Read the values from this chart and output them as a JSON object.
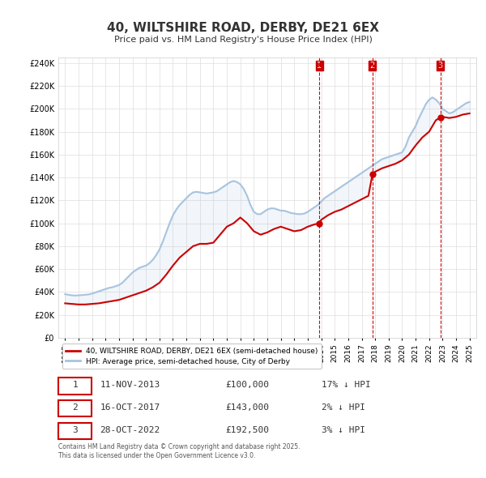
{
  "title": "40, WILTSHIRE ROAD, DERBY, DE21 6EX",
  "subtitle": "Price paid vs. HM Land Registry's House Price Index (HPI)",
  "ylabel_ticks": [
    "£0",
    "£20K",
    "£40K",
    "£60K",
    "£80K",
    "£100K",
    "£120K",
    "£140K",
    "£160K",
    "£180K",
    "£200K",
    "£220K",
    "£240K"
  ],
  "ytick_vals": [
    0,
    20000,
    40000,
    60000,
    80000,
    100000,
    120000,
    140000,
    160000,
    180000,
    200000,
    220000,
    240000
  ],
  "ylim": [
    0,
    245000
  ],
  "hpi_color": "#a8c4e0",
  "price_color": "#cc0000",
  "sale_marker_color": "#cc0000",
  "vline_color": "#cc0000",
  "vline_style": "--",
  "legend_box_color": "#f0f0f0",
  "legend_label_price": "40, WILTSHIRE ROAD, DERBY, DE21 6EX (semi-detached house)",
  "legend_label_hpi": "HPI: Average price, semi-detached house, City of Derby",
  "transactions": [
    {
      "num": 1,
      "date": "11-NOV-2013",
      "price": 100000,
      "hpi_diff": "17% ↓ HPI",
      "x": 2013.87
    },
    {
      "num": 2,
      "date": "16-OCT-2017",
      "price": 143000,
      "hpi_diff": "2% ↓ HPI",
      "x": 2017.8
    },
    {
      "num": 3,
      "date": "28-OCT-2022",
      "price": 192500,
      "hpi_diff": "3% ↓ HPI",
      "x": 2022.83
    }
  ],
  "footnote": "Contains HM Land Registry data © Crown copyright and database right 2025.\nThis data is licensed under the Open Government Licence v3.0.",
  "hpi_data_x": [
    1995.0,
    1995.25,
    1995.5,
    1995.75,
    1996.0,
    1996.25,
    1996.5,
    1996.75,
    1997.0,
    1997.25,
    1997.5,
    1997.75,
    1998.0,
    1998.25,
    1998.5,
    1998.75,
    1999.0,
    1999.25,
    1999.5,
    1999.75,
    2000.0,
    2000.25,
    2000.5,
    2000.75,
    2001.0,
    2001.25,
    2001.5,
    2001.75,
    2002.0,
    2002.25,
    2002.5,
    2002.75,
    2003.0,
    2003.25,
    2003.5,
    2003.75,
    2004.0,
    2004.25,
    2004.5,
    2004.75,
    2005.0,
    2005.25,
    2005.5,
    2005.75,
    2006.0,
    2006.25,
    2006.5,
    2006.75,
    2007.0,
    2007.25,
    2007.5,
    2007.75,
    2008.0,
    2008.25,
    2008.5,
    2008.75,
    2009.0,
    2009.25,
    2009.5,
    2009.75,
    2010.0,
    2010.25,
    2010.5,
    2010.75,
    2011.0,
    2011.25,
    2011.5,
    2011.75,
    2012.0,
    2012.25,
    2012.5,
    2012.75,
    2013.0,
    2013.25,
    2013.5,
    2013.75,
    2014.0,
    2014.25,
    2014.5,
    2014.75,
    2015.0,
    2015.25,
    2015.5,
    2015.75,
    2016.0,
    2016.25,
    2016.5,
    2016.75,
    2017.0,
    2017.25,
    2017.5,
    2017.75,
    2018.0,
    2018.25,
    2018.5,
    2018.75,
    2019.0,
    2019.25,
    2019.5,
    2019.75,
    2020.0,
    2020.25,
    2020.5,
    2020.75,
    2021.0,
    2021.25,
    2021.5,
    2021.75,
    2022.0,
    2022.25,
    2022.5,
    2022.75,
    2023.0,
    2023.25,
    2023.5,
    2023.75,
    2024.0,
    2024.25,
    2024.5,
    2024.75,
    2025.0
  ],
  "hpi_data_y": [
    38000,
    37500,
    37000,
    36800,
    37000,
    37200,
    37500,
    37800,
    38500,
    39500,
    40500,
    41500,
    42500,
    43500,
    44000,
    45000,
    46000,
    48000,
    51000,
    54000,
    57000,
    59000,
    61000,
    62000,
    63000,
    65000,
    68000,
    72000,
    77000,
    84000,
    92000,
    100000,
    107000,
    112000,
    116000,
    119000,
    122000,
    125000,
    127000,
    127500,
    127000,
    126500,
    126000,
    126500,
    127000,
    128000,
    130000,
    132000,
    134000,
    136000,
    137000,
    136000,
    134000,
    130000,
    124000,
    116000,
    110000,
    108000,
    108000,
    110000,
    112000,
    113000,
    113000,
    112000,
    111000,
    111000,
    110000,
    109000,
    108500,
    108000,
    108000,
    108500,
    110000,
    112000,
    114000,
    116000,
    119000,
    122000,
    124000,
    126000,
    128000,
    130000,
    132000,
    134000,
    136000,
    138000,
    140000,
    142000,
    144000,
    146000,
    148000,
    150000,
    152000,
    154000,
    156000,
    157000,
    158000,
    159000,
    160000,
    161000,
    162000,
    167000,
    175000,
    180000,
    185000,
    192000,
    198000,
    204000,
    208000,
    210000,
    208000,
    205000,
    200000,
    198000,
    196000,
    197000,
    199000,
    201000,
    203000,
    205000,
    206000
  ],
  "price_data_x": [
    1995.0,
    1995.5,
    1996.0,
    1996.5,
    1997.0,
    1997.5,
    1998.0,
    1998.5,
    1999.0,
    1999.5,
    2000.0,
    2000.5,
    2001.0,
    2001.5,
    2002.0,
    2002.5,
    2003.0,
    2003.5,
    2004.0,
    2004.5,
    2005.0,
    2005.5,
    2006.0,
    2006.5,
    2007.0,
    2007.5,
    2008.0,
    2008.5,
    2009.0,
    2009.5,
    2010.0,
    2010.5,
    2011.0,
    2011.5,
    2012.0,
    2012.5,
    2013.0,
    2013.5,
    2013.87,
    2014.0,
    2014.5,
    2015.0,
    2015.5,
    2016.0,
    2016.5,
    2017.0,
    2017.5,
    2017.8,
    2018.0,
    2018.5,
    2019.0,
    2019.5,
    2020.0,
    2020.5,
    2021.0,
    2021.5,
    2022.0,
    2022.5,
    2022.83,
    2023.0,
    2023.5,
    2024.0,
    2024.5,
    2025.0
  ],
  "price_data_y": [
    30000,
    29500,
    29000,
    29000,
    29500,
    30000,
    31000,
    32000,
    33000,
    35000,
    37000,
    39000,
    41000,
    44000,
    48000,
    55000,
    63000,
    70000,
    75000,
    80000,
    82000,
    82000,
    83000,
    90000,
    97000,
    100000,
    105000,
    100000,
    93000,
    90000,
    92000,
    95000,
    97000,
    95000,
    93000,
    94000,
    97000,
    99000,
    100000,
    103000,
    107000,
    110000,
    112000,
    115000,
    118000,
    121000,
    124000,
    143000,
    145000,
    148000,
    150000,
    152000,
    155000,
    160000,
    168000,
    175000,
    180000,
    190000,
    192500,
    193000,
    192000,
    193000,
    195000,
    196000
  ]
}
